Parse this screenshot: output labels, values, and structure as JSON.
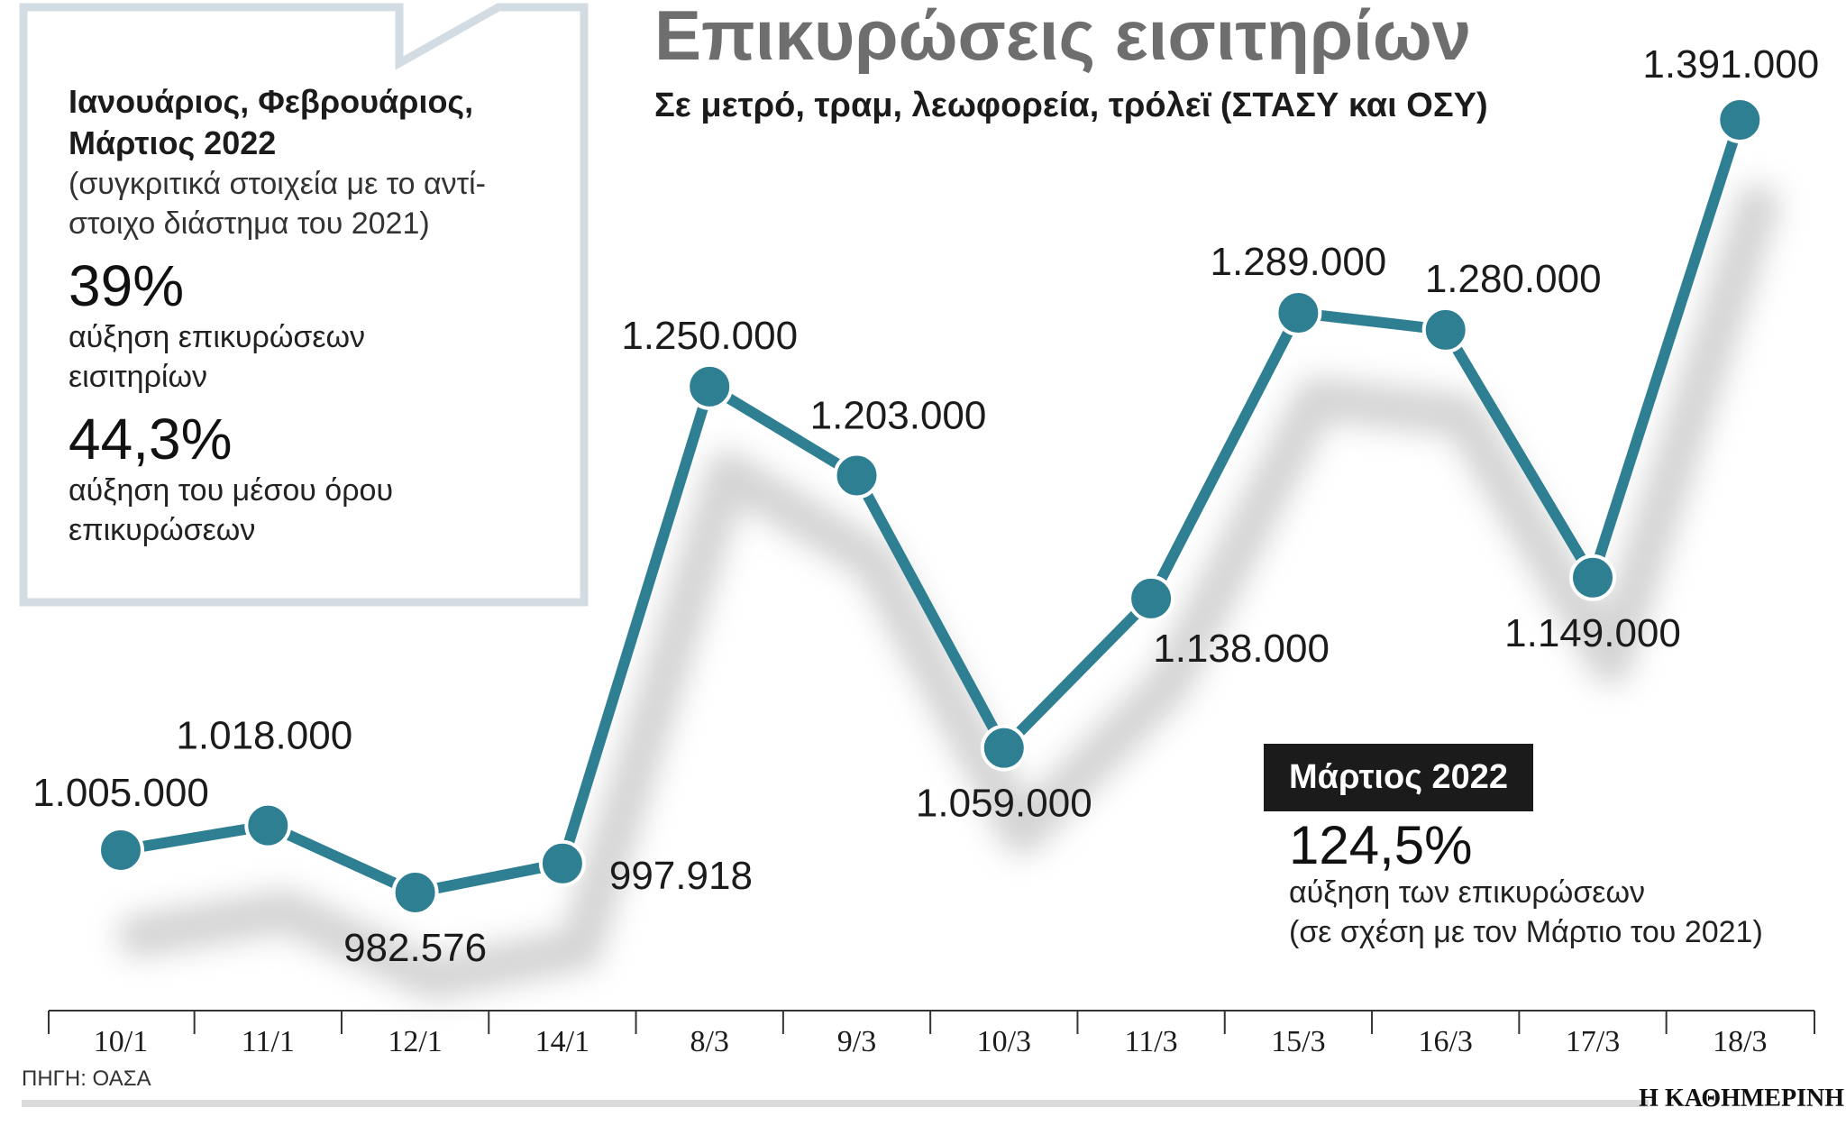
{
  "title": "Επικυρώσεις εισιτηρίων",
  "subtitle": "Σε μετρό, τραμ, λεωφορεία, τρόλεϊ (ΣΤΑΣΥ και ΟΣΥ)",
  "info_box": {
    "heading_line1": "Ιανουάριος, Φεβρουάριος,",
    "heading_line2": "Μάρτιος 2022",
    "note_line1": "(συγκριτικά στοιχεία με το αντί-",
    "note_line2": "στοιχο διάστημα του 2021)",
    "stat1_value": "39%",
    "stat1_desc_line1": "αύξηση επικυρώσεων",
    "stat1_desc_line2": "εισιτηρίων",
    "stat2_value": "44,3%",
    "stat2_desc_line1": "αύξηση του μέσου όρου",
    "stat2_desc_line2": "επικυρώσεων"
  },
  "march_box": {
    "badge": "Μάρτιος 2022",
    "value": "124,5%",
    "desc_line1": "αύξηση των επικυρώσεων",
    "desc_line2": "(σε σχέση με τον Μάρτιο του 2021)"
  },
  "source": "ΠΗΓΗ: ΟΑΣΑ",
  "brand": "Η ΚΑΘΗΜΕΡΙΝΗ",
  "colors": {
    "line": "#2f7f93",
    "title": "#6e6e6e",
    "box_border": "#d3dce3"
  },
  "chart_data": {
    "type": "line",
    "title": "Επικυρώσεις εισιτηρίων",
    "xlabel": "",
    "ylabel": "",
    "categories": [
      "10/1",
      "11/1",
      "12/1",
      "14/1",
      "8/3",
      "9/3",
      "10/3",
      "11/3",
      "15/3",
      "16/3",
      "17/3",
      "18/3"
    ],
    "values": [
      1005000,
      1018000,
      982576,
      997918,
      1250000,
      1203000,
      1059000,
      1138000,
      1289000,
      1280000,
      1149000,
      1391000
    ],
    "labels": [
      "1.005.000",
      "1.018.000",
      "982.576",
      "997.918",
      "1.250.000",
      "1.203.000",
      "1.059.000",
      "1.138.000",
      "1.289.000",
      "1.280.000",
      "1.149.000",
      "1.391.000"
    ],
    "label_positions": [
      "above",
      "above",
      "below",
      "right",
      "above",
      "above",
      "below",
      "below",
      "above",
      "above",
      "below",
      "above"
    ],
    "grid": false
  }
}
